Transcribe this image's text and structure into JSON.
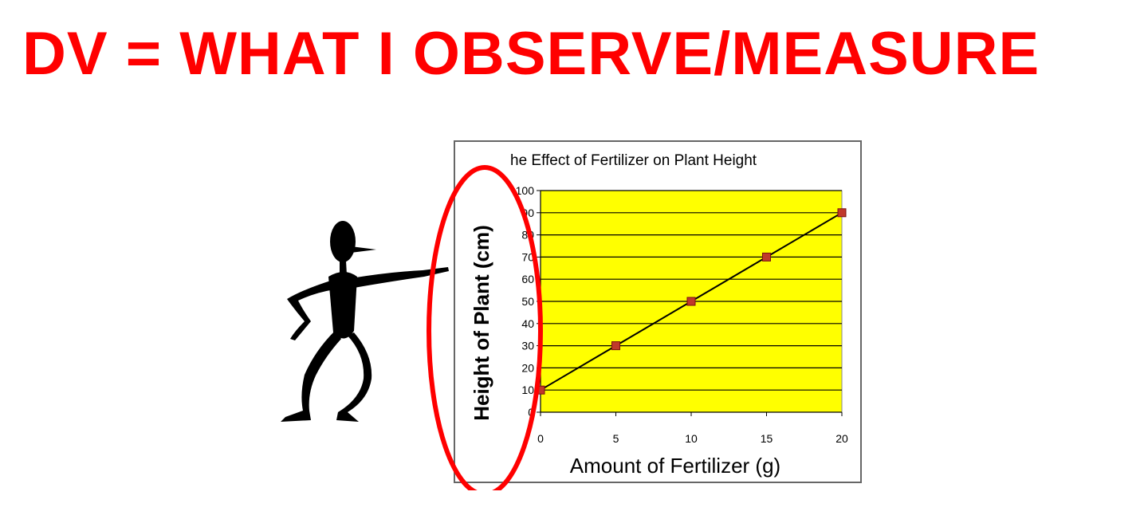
{
  "headline": "DV = WHAT I OBSERVE/MEASURE",
  "colors": {
    "headline": "#ff0000",
    "plot_background": "#ffff00",
    "marker": "#c0392b",
    "highlight_ellipse": "#ff0000"
  },
  "chart_data": {
    "type": "line",
    "title": "he Effect of Fertilizer on Plant Height",
    "xlabel": "Amount of Fertilizer (g)",
    "ylabel": "Height of Plant (cm)",
    "x": [
      0,
      5,
      10,
      15,
      20
    ],
    "series": [
      {
        "values": [
          10,
          30,
          50,
          70,
          90
        ]
      }
    ],
    "x_ticks": [
      "0",
      "5",
      "10",
      "15",
      "20"
    ],
    "y_ticks": [
      "0",
      "10",
      "20",
      "30",
      "40",
      "50",
      "60",
      "70",
      "80",
      "90",
      "100"
    ],
    "xlim": [
      0,
      20
    ],
    "ylim": [
      0,
      100
    ],
    "grid": "horizontal",
    "legend": "none",
    "annotation": "red ellipse circling the y-axis label"
  }
}
